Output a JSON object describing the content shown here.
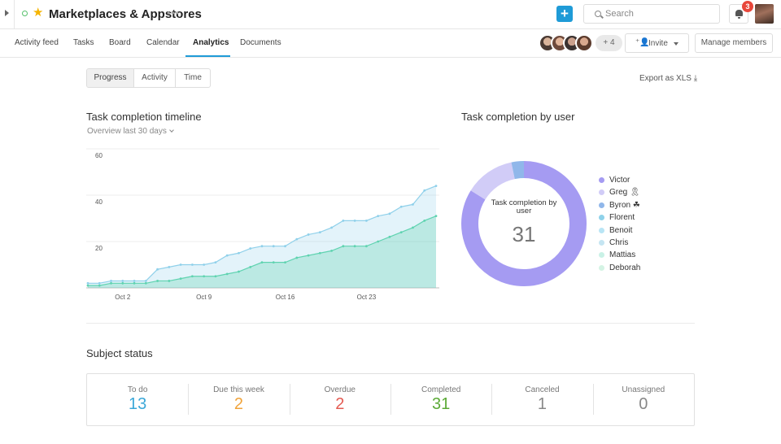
{
  "header": {
    "title": "Marketplaces & Appstores",
    "more": "•••",
    "add_icon": "+",
    "search_placeholder": "Search",
    "notification_count": "3"
  },
  "nav": {
    "tabs": [
      {
        "label": "Activity feed"
      },
      {
        "label": "Tasks"
      },
      {
        "label": "Board"
      },
      {
        "label": "Calendar"
      },
      {
        "label": "Analytics",
        "active": true
      },
      {
        "label": "Documents"
      }
    ],
    "members_more": "+ 4",
    "invite_label": "Invite",
    "manage_members_label": "Manage members"
  },
  "toolbar": {
    "segments": [
      {
        "label": "Progress",
        "active": true
      },
      {
        "label": "Activity"
      },
      {
        "label": "Time"
      }
    ],
    "export_label": "Export as XLS ⤓"
  },
  "timeline": {
    "title": "Task completion timeline",
    "subtitle": "Overview last 30 days"
  },
  "by_user": {
    "title": "Task completion by user",
    "center_label": "Task completion by user",
    "center_value": "31"
  },
  "chart_data": [
    {
      "type": "area",
      "title": "Task completion timeline",
      "x_ticks": [
        "Oct 2",
        "Oct 9",
        "Oct 16",
        "Oct 23"
      ],
      "y_ticks": [
        20,
        40,
        60
      ],
      "ylim": [
        0,
        60
      ],
      "x": [
        0,
        1,
        2,
        3,
        4,
        5,
        6,
        7,
        8,
        9,
        10,
        11,
        12,
        13,
        14,
        15,
        16,
        17,
        18,
        19,
        20,
        21,
        22,
        23,
        24,
        25,
        26,
        27,
        28,
        29,
        30
      ],
      "series": [
        {
          "values": [
            2,
            2,
            3,
            3,
            3,
            3,
            8,
            9,
            10,
            10,
            10,
            11,
            14,
            15,
            17,
            18,
            18,
            18,
            21,
            23,
            24,
            26,
            29,
            29,
            29,
            31,
            32,
            35,
            36,
            42,
            44
          ]
        },
        {
          "values": [
            1,
            1,
            2,
            2,
            2,
            2,
            3,
            3,
            4,
            5,
            5,
            5,
            6,
            7,
            9,
            11,
            11,
            11,
            13,
            14,
            15,
            16,
            18,
            18,
            18,
            20,
            22,
            24,
            26,
            29,
            31
          ]
        }
      ],
      "colors": {
        "total": "#8fd0ea",
        "completed": "#5fd3b0"
      },
      "grid": true
    },
    {
      "type": "pie",
      "title": "Task completion by user",
      "labels": [
        "Victor",
        "Greg 🎗",
        "Byron ☘",
        "Florent",
        "Benoit",
        "Chris",
        "Mattias",
        "Deborah"
      ],
      "values": [
        26,
        4,
        1,
        0,
        0,
        0,
        0,
        0
      ],
      "colors": [
        "#a59bf2",
        "#d1ccf7",
        "#90b7ea",
        "#8fd2ea",
        "#b9e5f5",
        "#c5e5f2",
        "#c9f1e6",
        "#d4f3e4"
      ]
    }
  ],
  "status": {
    "title": "Subject status",
    "cells": [
      {
        "label": "To do",
        "value": "13",
        "color": "#3aa7d8"
      },
      {
        "label": "Due this week",
        "value": "2",
        "color": "#f0a33b"
      },
      {
        "label": "Overdue",
        "value": "2",
        "color": "#e45b52"
      },
      {
        "label": "Completed",
        "value": "31",
        "color": "#5aa935"
      },
      {
        "label": "Canceled",
        "value": "1",
        "color": "#888888"
      },
      {
        "label": "Unassigned",
        "value": "0",
        "color": "#888888"
      }
    ]
  }
}
